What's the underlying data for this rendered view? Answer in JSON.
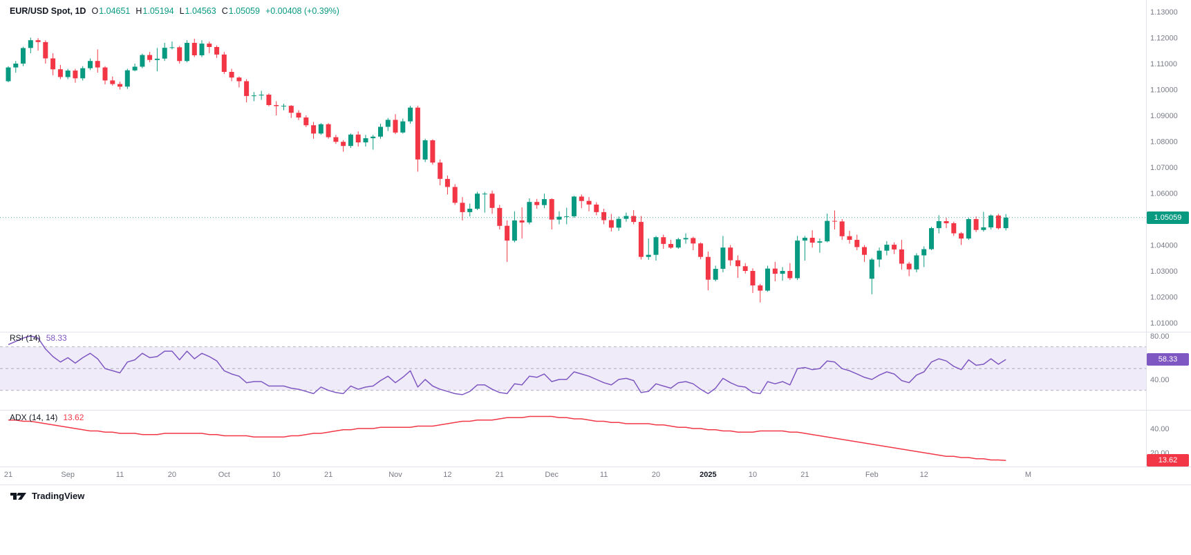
{
  "header": {
    "symbol_text": "EUR/USD Spot, 1D",
    "ohlc": [
      {
        "k": "O",
        "v": "1.04651"
      },
      {
        "k": "H",
        "v": "1.05194"
      },
      {
        "k": "L",
        "v": "1.04563"
      },
      {
        "k": "C",
        "v": "1.05059"
      }
    ],
    "change": "+0.00408 (+0.39%)"
  },
  "price_scale": {
    "ticks": [
      "1.13000",
      "1.12000",
      "1.11000",
      "1.10000",
      "1.09000",
      "1.08000",
      "1.07000",
      "1.06000",
      "1.05000",
      "1.04000",
      "1.03000",
      "1.02000",
      "1.01000"
    ],
    "max": 1.13,
    "min": 1.01,
    "last_price": 1.05059,
    "last_price_label": "1.05059"
  },
  "rsi": {
    "title": "RSI (14)",
    "value": 58.33,
    "value_label": "58.33",
    "bands": [
      70,
      50,
      30
    ],
    "ticks": [
      {
        "label": "80.00",
        "v": 80
      },
      {
        "label": "40.00",
        "v": 40
      }
    ]
  },
  "adx": {
    "title": "ADX (14, 14)",
    "value": 13.62,
    "value_label": "13.62",
    "ticks": [
      {
        "label": "40.00",
        "v": 40
      },
      {
        "label": "20.00",
        "v": 20
      }
    ]
  },
  "time_scale": {
    "labels": [
      {
        "t": "21",
        "i": 0
      },
      {
        "t": "Sep",
        "i": 8
      },
      {
        "t": "11",
        "i": 15
      },
      {
        "t": "20",
        "i": 22
      },
      {
        "t": "Oct",
        "i": 29
      },
      {
        "t": "10",
        "i": 36
      },
      {
        "t": "21",
        "i": 43
      },
      {
        "t": "Nov",
        "i": 52
      },
      {
        "t": "12",
        "i": 59
      },
      {
        "t": "21",
        "i": 66
      },
      {
        "t": "Dec",
        "i": 73
      },
      {
        "t": "11",
        "i": 80
      },
      {
        "t": "20",
        "i": 87
      },
      {
        "t": "2025",
        "i": 94,
        "bold": true
      },
      {
        "t": "10",
        "i": 100
      },
      {
        "t": "21",
        "i": 107
      },
      {
        "t": "Feb",
        "i": 116
      },
      {
        "t": "12",
        "i": 123
      },
      {
        "t": "M",
        "i": 137
      }
    ]
  },
  "footer": {
    "brand": "TradingView"
  },
  "colors": {
    "up": "#089981",
    "down": "#F23645",
    "rsi": "#7E57C2",
    "rsi_fill": "rgba(126,87,194,0.12)",
    "band_line": "#787B86",
    "adx": "#F23645",
    "axis_text": "#787B86",
    "text": "#131722",
    "grid": "#E0E3EB"
  },
  "chart_data": {
    "type": "candlestick",
    "title": "EUR/USD Spot, 1D",
    "x_axis": "time (Aug 21 2024 - Feb 27 2025, daily)",
    "ylim": [
      1.01,
      1.13
    ],
    "candles_ohlc": [
      [
        1.1032,
        1.109,
        1.1028,
        1.1085
      ],
      [
        1.1085,
        1.111,
        1.1065,
        1.11
      ],
      [
        1.11,
        1.1165,
        1.109,
        1.116
      ],
      [
        1.116,
        1.12,
        1.114,
        1.119
      ],
      [
        1.119,
        1.1198,
        1.115,
        1.1183
      ],
      [
        1.1183,
        1.119,
        1.11,
        1.112
      ],
      [
        1.112,
        1.114,
        1.1055,
        1.1078
      ],
      [
        1.1078,
        1.1095,
        1.104,
        1.1048
      ],
      [
        1.1048,
        1.108,
        1.104,
        1.1073
      ],
      [
        1.1073,
        1.108,
        1.1026,
        1.1043
      ],
      [
        1.1043,
        1.109,
        1.1035,
        1.1082
      ],
      [
        1.1082,
        1.112,
        1.1075,
        1.111
      ],
      [
        1.111,
        1.1155,
        1.1065,
        1.1085
      ],
      [
        1.1085,
        1.109,
        1.102,
        1.1035
      ],
      [
        1.1035,
        1.105,
        1.1015,
        1.1021
      ],
      [
        1.1021,
        1.103,
        1.1,
        1.1011
      ],
      [
        1.1011,
        1.108,
        1.1002,
        1.1074
      ],
      [
        1.1074,
        1.11,
        1.107,
        1.1088
      ],
      [
        1.1088,
        1.1138,
        1.1082,
        1.1133
      ],
      [
        1.1133,
        1.1145,
        1.1105,
        1.1114
      ],
      [
        1.1114,
        1.116,
        1.107,
        1.1119
      ],
      [
        1.1119,
        1.118,
        1.111,
        1.1161
      ],
      [
        1.1161,
        1.1185,
        1.1155,
        1.1163
      ],
      [
        1.1163,
        1.1168,
        1.11,
        1.111
      ],
      [
        1.111,
        1.119,
        1.1105,
        1.118
      ],
      [
        1.118,
        1.1196,
        1.1125,
        1.1132
      ],
      [
        1.1132,
        1.119,
        1.1125,
        1.1177
      ],
      [
        1.1177,
        1.1185,
        1.114,
        1.1164
      ],
      [
        1.1164,
        1.117,
        1.1122,
        1.1135
      ],
      [
        1.1135,
        1.1145,
        1.106,
        1.1068
      ],
      [
        1.1068,
        1.108,
        1.1032,
        1.1046
      ],
      [
        1.1046,
        1.105,
        1.1008,
        1.1032
      ],
      [
        1.1032,
        1.104,
        1.095,
        1.0975
      ],
      [
        1.0975,
        1.099,
        1.0955,
        1.0977
      ],
      [
        1.0977,
        1.0995,
        1.096,
        1.098
      ],
      [
        1.098,
        1.0985,
        1.0935,
        1.094
      ],
      [
        1.094,
        1.0955,
        1.09,
        1.0936
      ],
      [
        1.0936,
        1.0945,
        1.092,
        1.0937
      ],
      [
        1.0937,
        1.094,
        1.089,
        1.091
      ],
      [
        1.091,
        1.092,
        1.0882,
        1.0892
      ],
      [
        1.0892,
        1.09,
        1.0855,
        1.0862
      ],
      [
        1.0862,
        1.0875,
        1.081,
        1.083
      ],
      [
        1.083,
        1.087,
        1.0825,
        1.0866
      ],
      [
        1.0866,
        1.087,
        1.081,
        1.0816
      ],
      [
        1.0816,
        1.0825,
        1.079,
        1.0798
      ],
      [
        1.0798,
        1.0805,
        1.076,
        1.0782
      ],
      [
        1.0782,
        1.083,
        1.0775,
        1.0826
      ],
      [
        1.0826,
        1.0838,
        1.078,
        1.0796
      ],
      [
        1.0796,
        1.0825,
        1.078,
        1.0812
      ],
      [
        1.0812,
        1.0825,
        1.0768,
        1.0818
      ],
      [
        1.0818,
        1.0868,
        1.081,
        1.0856
      ],
      [
        1.0856,
        1.089,
        1.084,
        1.0883
      ],
      [
        1.0883,
        1.0905,
        1.0828,
        1.0834
      ],
      [
        1.0834,
        1.0888,
        1.083,
        1.0877
      ],
      [
        1.0877,
        1.0937,
        1.0868,
        1.093
      ],
      [
        1.093,
        1.0937,
        1.0683,
        1.073
      ],
      [
        1.073,
        1.081,
        1.072,
        1.0804
      ],
      [
        1.0804,
        1.0808,
        1.071,
        1.0718
      ],
      [
        1.0718,
        1.073,
        1.063,
        1.0655
      ],
      [
        1.0655,
        1.0668,
        1.0595,
        1.0624
      ],
      [
        1.0624,
        1.0635,
        1.0555,
        1.0563
      ],
      [
        1.0563,
        1.0585,
        1.0495,
        1.0527
      ],
      [
        1.0527,
        1.056,
        1.051,
        1.054
      ],
      [
        1.054,
        1.0605,
        1.0535,
        1.0598
      ],
      [
        1.0598,
        1.0605,
        1.0525,
        1.0598
      ],
      [
        1.0598,
        1.061,
        1.052,
        1.0543
      ],
      [
        1.0543,
        1.0555,
        1.046,
        1.0474
      ],
      [
        1.0474,
        1.0495,
        1.0335,
        1.0417
      ],
      [
        1.0417,
        1.053,
        1.041,
        1.0495
      ],
      [
        1.0495,
        1.0545,
        1.0425,
        1.0487
      ],
      [
        1.0487,
        1.058,
        1.048,
        1.0566
      ],
      [
        1.0566,
        1.0578,
        1.054,
        1.0554
      ],
      [
        1.0554,
        1.0598,
        1.0542,
        1.0577
      ],
      [
        1.0577,
        1.058,
        1.046,
        1.0498
      ],
      [
        1.0498,
        1.053,
        1.048,
        1.0509
      ],
      [
        1.0509,
        1.0544,
        1.048,
        1.0511
      ],
      [
        1.0511,
        1.059,
        1.0505,
        1.0587
      ],
      [
        1.0587,
        1.0595,
        1.0542,
        1.057
      ],
      [
        1.057,
        1.0585,
        1.053,
        1.0556
      ],
      [
        1.0556,
        1.0565,
        1.0515,
        1.0527
      ],
      [
        1.0527,
        1.054,
        1.048,
        1.0496
      ],
      [
        1.0496,
        1.052,
        1.0452,
        1.0467
      ],
      [
        1.0467,
        1.051,
        1.0455,
        1.0501
      ],
      [
        1.0501,
        1.0525,
        1.049,
        1.0512
      ],
      [
        1.0512,
        1.0535,
        1.048,
        1.0489
      ],
      [
        1.0489,
        1.0512,
        1.0344,
        1.0354
      ],
      [
        1.0354,
        1.0425,
        1.0343,
        1.0362
      ],
      [
        1.0362,
        1.0435,
        1.034,
        1.043
      ],
      [
        1.043,
        1.044,
        1.0385,
        1.0404
      ],
      [
        1.0404,
        1.042,
        1.0385,
        1.039
      ],
      [
        1.039,
        1.0428,
        1.0385,
        1.0422
      ],
      [
        1.0422,
        1.0445,
        1.0405,
        1.0427
      ],
      [
        1.0427,
        1.0432,
        1.038,
        1.0406
      ],
      [
        1.0406,
        1.041,
        1.0345,
        1.0354
      ],
      [
        1.0354,
        1.0375,
        1.0225,
        1.0266
      ],
      [
        1.0266,
        1.032,
        1.026,
        1.0308
      ],
      [
        1.0308,
        1.0435,
        1.0295,
        1.039
      ],
      [
        1.039,
        1.04,
        1.032,
        1.0341
      ],
      [
        1.0341,
        1.036,
        1.0273,
        1.0318
      ],
      [
        1.0318,
        1.033,
        1.029,
        1.03
      ],
      [
        1.03,
        1.031,
        1.0215,
        1.0244
      ],
      [
        1.0244,
        1.025,
        1.0178,
        1.0224
      ],
      [
        1.0224,
        1.032,
        1.022,
        1.0309
      ],
      [
        1.0309,
        1.0335,
        1.026,
        1.0289
      ],
      [
        1.0289,
        1.0315,
        1.0262,
        1.03
      ],
      [
        1.03,
        1.033,
        1.0265,
        1.0272
      ],
      [
        1.0272,
        1.0435,
        1.0265,
        1.0417
      ],
      [
        1.0417,
        1.0435,
        1.034,
        1.0428
      ],
      [
        1.0428,
        1.0457,
        1.039,
        1.0409
      ],
      [
        1.0409,
        1.0425,
        1.037,
        1.0414
      ],
      [
        1.0414,
        1.0521,
        1.041,
        1.0493
      ],
      [
        1.0493,
        1.0533,
        1.046,
        1.0491
      ],
      [
        1.0491,
        1.05,
        1.042,
        1.0434
      ],
      [
        1.0434,
        1.0455,
        1.0405,
        1.042
      ],
      [
        1.042,
        1.044,
        1.038,
        1.0392
      ],
      [
        1.0392,
        1.04,
        1.0335,
        1.0362
      ],
      [
        1.027,
        1.035,
        1.021,
        1.0344
      ],
      [
        1.0344,
        1.039,
        1.0315,
        1.0378
      ],
      [
        1.0378,
        1.0415,
        1.036,
        1.0401
      ],
      [
        1.0401,
        1.041,
        1.0365,
        1.0383
      ],
      [
        1.0383,
        1.042,
        1.0305,
        1.0328
      ],
      [
        1.0328,
        1.0335,
        1.028,
        1.0306
      ],
      [
        1.0306,
        1.0368,
        1.0295,
        1.036
      ],
      [
        1.036,
        1.0395,
        1.0315,
        1.0384
      ],
      [
        1.0384,
        1.047,
        1.038,
        1.0465
      ],
      [
        1.0465,
        1.0515,
        1.0445,
        1.0492
      ],
      [
        1.0492,
        1.0505,
        1.0465,
        1.0484
      ],
      [
        1.0484,
        1.049,
        1.0435,
        1.0445
      ],
      [
        1.0445,
        1.045,
        1.04,
        1.0425
      ],
      [
        1.0425,
        1.0505,
        1.042,
        1.05
      ],
      [
        1.05,
        1.051,
        1.045,
        1.0458
      ],
      [
        1.0458,
        1.0528,
        1.0452,
        1.0468
      ],
      [
        1.0468,
        1.0518,
        1.046,
        1.0514
      ],
      [
        1.0514,
        1.052,
        1.046,
        1.0465
      ],
      [
        1.04651,
        1.05194,
        1.04563,
        1.05059
      ]
    ],
    "indicators": [
      {
        "name": "RSI (14)",
        "type": "line",
        "color": "#7E57C2",
        "range": [
          0,
          100
        ],
        "bands": [
          70,
          50,
          30
        ],
        "values": [
          72,
          75,
          78,
          80,
          78,
          68,
          61,
          56,
          60,
          55,
          60,
          64,
          59,
          50,
          48,
          46,
          56,
          58,
          64,
          60,
          61,
          66,
          66,
          58,
          66,
          59,
          64,
          61,
          57,
          48,
          45,
          43,
          37,
          38,
          38,
          34,
          34,
          34,
          32,
          31,
          29,
          27,
          33,
          30,
          28,
          27,
          34,
          31,
          33,
          34,
          39,
          43,
          37,
          42,
          48,
          33,
          40,
          34,
          31,
          29,
          27,
          26,
          29,
          35,
          35,
          31,
          28,
          27,
          36,
          35,
          43,
          42,
          45,
          38,
          40,
          40,
          47,
          45,
          43,
          40,
          37,
          35,
          40,
          41,
          39,
          28,
          29,
          36,
          34,
          32,
          37,
          38,
          36,
          31,
          27,
          32,
          41,
          37,
          34,
          33,
          28,
          27,
          38,
          36,
          38,
          35,
          50,
          51,
          49,
          50,
          57,
          56,
          50,
          48,
          45,
          42,
          40,
          44,
          47,
          45,
          39,
          37,
          44,
          47,
          56,
          59,
          57,
          52,
          49,
          58,
          53,
          54,
          59,
          54,
          58.33
        ]
      },
      {
        "name": "ADX (14, 14)",
        "type": "line",
        "color": "#F23645",
        "values": [
          47,
          47,
          46,
          46,
          45,
          44,
          43,
          42,
          41,
          40,
          39,
          38,
          38,
          37,
          37,
          36,
          36,
          36,
          35,
          35,
          35,
          36,
          36,
          36,
          36,
          36,
          36,
          35,
          35,
          34,
          34,
          34,
          34,
          33,
          33,
          33,
          33,
          33,
          34,
          34,
          35,
          36,
          36,
          37,
          38,
          39,
          39,
          40,
          40,
          40,
          41,
          41,
          41,
          41,
          41,
          42,
          42,
          42,
          43,
          44,
          45,
          46,
          46,
          47,
          47,
          47,
          48,
          49,
          49,
          49,
          50,
          50,
          50,
          50,
          49,
          49,
          48,
          48,
          47,
          46,
          46,
          45,
          45,
          44,
          44,
          44,
          44,
          43,
          43,
          42,
          41,
          41,
          40,
          40,
          39,
          39,
          38,
          38,
          37,
          37,
          37,
          38,
          38,
          38,
          38,
          37,
          37,
          36,
          35,
          34,
          33,
          32,
          31,
          30,
          29,
          28,
          27,
          26,
          25,
          24,
          23,
          22,
          21,
          20,
          19,
          18,
          17,
          17,
          16,
          16,
          15,
          15,
          14,
          14,
          13.62
        ]
      }
    ]
  }
}
